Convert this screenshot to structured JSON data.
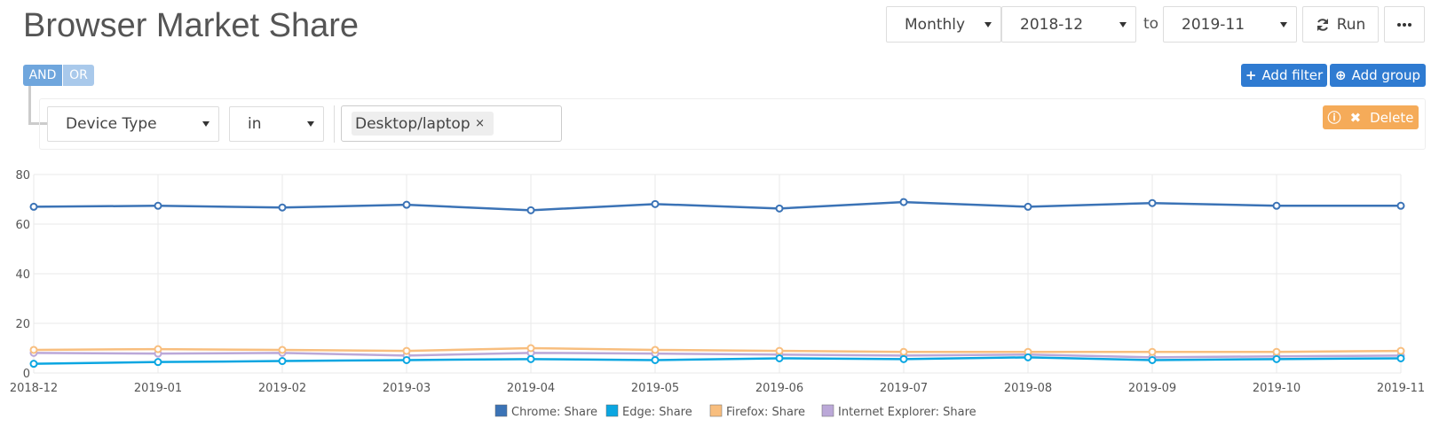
{
  "header": {
    "title": "Browser Market Share",
    "period": "Monthly",
    "from": "2018-12",
    "to_label": "to",
    "to": "2019-11",
    "run": "Run"
  },
  "filters": {
    "and": "AND",
    "or": "OR",
    "add_filter": "Add filter",
    "add_group": "Add group",
    "field": "Device Type",
    "operator": "in",
    "value": "Desktop/laptop",
    "remove": "×",
    "delete": "Delete"
  },
  "chart_data": {
    "type": "line",
    "categories": [
      "2018-12",
      "2019-01",
      "2019-02",
      "2019-03",
      "2019-04",
      "2019-05",
      "2019-06",
      "2019-07",
      "2019-08",
      "2019-09",
      "2019-10",
      "2019-11"
    ],
    "series": [
      {
        "name": "Chrome: Share",
        "color": "#3b73b6",
        "values": [
          67.0,
          67.4,
          66.7,
          67.8,
          65.6,
          68.1,
          66.3,
          68.9,
          67.0,
          68.5,
          67.4,
          67.4
        ]
      },
      {
        "name": "Edge: Share",
        "color": "#0ba6e1",
        "values": [
          3.7,
          4.4,
          4.8,
          5.2,
          5.6,
          5.2,
          5.9,
          5.6,
          6.3,
          5.2,
          5.6,
          5.9
        ]
      },
      {
        "name": "Firefox: Share",
        "color": "#f8be7e",
        "values": [
          9.3,
          9.6,
          9.3,
          8.9,
          10.0,
          9.3,
          8.9,
          8.5,
          8.5,
          8.5,
          8.5,
          8.9
        ]
      },
      {
        "name": "Internet Explorer: Share",
        "color": "#bba8d8",
        "values": [
          8.1,
          7.8,
          8.1,
          7.0,
          8.1,
          7.8,
          7.4,
          7.0,
          7.4,
          6.3,
          6.7,
          7.0
        ]
      }
    ],
    "ylim": [
      0,
      80
    ],
    "yticks": [
      0,
      20,
      40,
      60,
      80
    ],
    "grid": true
  }
}
